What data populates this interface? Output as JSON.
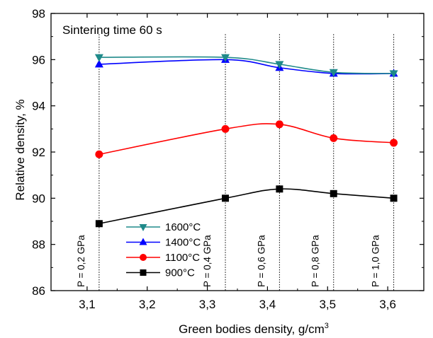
{
  "chart_data": {
    "type": "line",
    "annotation": "Sintering time 60 s",
    "xlabel": "Green bodies density, g/cm",
    "xlabel_sup": "3",
    "ylabel": "Relative density, %",
    "xlim": [
      3.04,
      3.66
    ],
    "ylim": [
      86,
      98
    ],
    "xticks": [
      3.1,
      3.2,
      3.3,
      3.4,
      3.5,
      3.6
    ],
    "xtick_labels": [
      "3,1",
      "3,2",
      "3,3",
      "3,4",
      "3,5",
      "3,6"
    ],
    "yticks": [
      86,
      88,
      90,
      92,
      94,
      96,
      98
    ],
    "ytick_labels": [
      "86",
      "88",
      "90",
      "92",
      "94",
      "96",
      "98"
    ],
    "grid": false,
    "legend_position": "bottom-left",
    "reference_lines": [
      {
        "x": 3.12,
        "label": "P = 0,2 GPa"
      },
      {
        "x": 3.33,
        "label": "P = 0,4 GPa"
      },
      {
        "x": 3.42,
        "label": "P = 0,6 GPa"
      },
      {
        "x": 3.51,
        "label": "P = 0,8 GPa"
      },
      {
        "x": 3.61,
        "label": "P = 1,0 GPa"
      }
    ],
    "series": [
      {
        "name": "1600°C",
        "temp": "1600",
        "color": "#1f8a8a",
        "marker": "triangle-down",
        "x": [
          3.12,
          3.33,
          3.42,
          3.51,
          3.61
        ],
        "y": [
          96.1,
          96.1,
          95.8,
          95.45,
          95.4
        ]
      },
      {
        "name": "1400°C",
        "temp": "1400",
        "color": "#0000ff",
        "marker": "triangle-up",
        "x": [
          3.12,
          3.33,
          3.42,
          3.51,
          3.61
        ],
        "y": [
          95.8,
          96.0,
          95.65,
          95.4,
          95.4
        ]
      },
      {
        "name": "1100°C",
        "temp": "1100",
        "color": "#ff0000",
        "marker": "circle",
        "x": [
          3.12,
          3.33,
          3.42,
          3.51,
          3.61
        ],
        "y": [
          91.9,
          93.0,
          93.2,
          92.6,
          92.4
        ]
      },
      {
        "name": "900°C",
        "temp": "900",
        "color": "#000000",
        "marker": "square",
        "x": [
          3.12,
          3.33,
          3.42,
          3.51,
          3.61
        ],
        "y": [
          88.9,
          90.0,
          90.4,
          90.2,
          90.0
        ]
      }
    ],
    "legend_order": [
      0,
      1,
      2,
      3
    ]
  }
}
